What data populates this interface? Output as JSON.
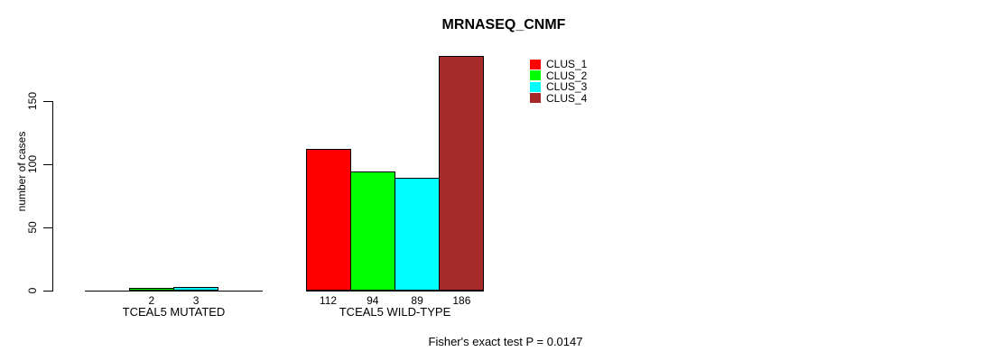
{
  "title": "MRNASEQ_CNMF",
  "footer": {
    "note": "Fisher's exact test P = 0.0147"
  },
  "chart_data": {
    "type": "bar",
    "title": "MRNASEQ_CNMF",
    "xlabel": "",
    "ylabel": "number of cases",
    "yticks": [
      0,
      50,
      100,
      150
    ],
    "ylim": [
      0,
      193
    ],
    "grid": false,
    "legend_position": "top-right",
    "legend": [
      {
        "name": "CLUS_1",
        "color": "#ff0000"
      },
      {
        "name": "CLUS_2",
        "color": "#00ff00"
      },
      {
        "name": "CLUS_3",
        "color": "#00ffff"
      },
      {
        "name": "CLUS_4",
        "color": "#a52a2a"
      }
    ],
    "groups": [
      {
        "label": "TCEAL5 MUTATED",
        "bars": [
          {
            "series": "CLUS_2",
            "value": 2,
            "color": "#00ff00"
          },
          {
            "series": "CLUS_3",
            "value": 3,
            "color": "#00ffff"
          }
        ]
      },
      {
        "label": "TCEAL5 WILD-TYPE",
        "bars": [
          {
            "series": "CLUS_1",
            "value": 112,
            "color": "#ff0000"
          },
          {
            "series": "CLUS_2",
            "value": 94,
            "color": "#00ff00"
          },
          {
            "series": "CLUS_3",
            "value": 89,
            "color": "#00ffff"
          },
          {
            "series": "CLUS_4",
            "value": 186,
            "color": "#a52a2a"
          }
        ]
      }
    ],
    "annotation": "Fisher's exact test P = 0.0147"
  }
}
